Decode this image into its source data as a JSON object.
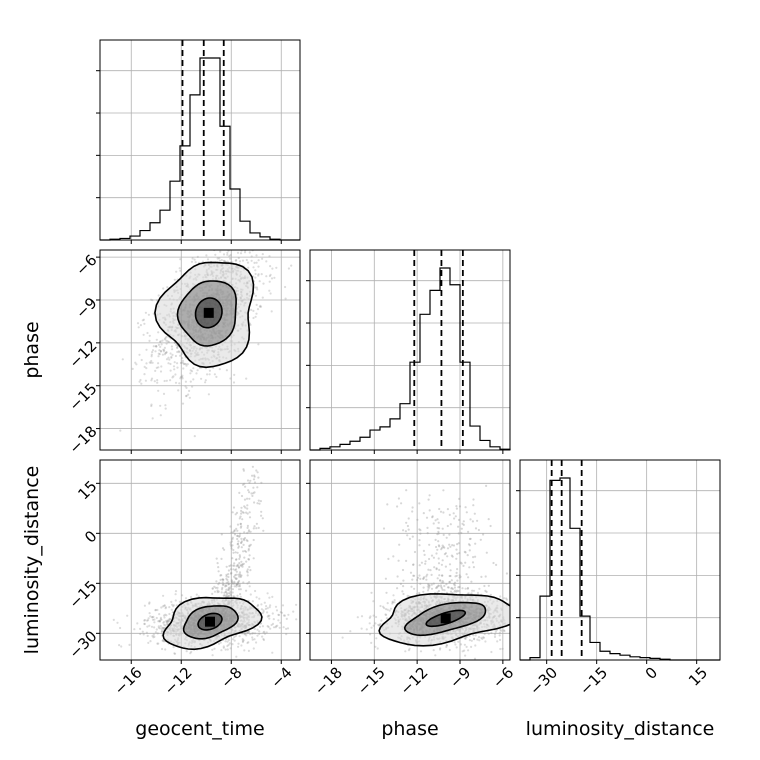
{
  "chart_data": {
    "type": "corner",
    "parameters": [
      "geocent_time",
      "phase",
      "luminosity_distance"
    ],
    "ranges": {
      "geocent_time": [
        -18.5,
        -2.5
      ],
      "phase": [
        -19.5,
        -5.5
      ],
      "luminosity_distance": [
        -38,
        22
      ]
    },
    "ticks": {
      "geocent_time": [
        -16,
        -12,
        -8,
        -4
      ],
      "phase": [
        -18,
        -15,
        -12,
        -9,
        -6
      ],
      "luminosity_distance": [
        -30,
        -15,
        0,
        15
      ]
    },
    "tick_labels": {
      "geocent_time": [
        "−16",
        "−12",
        "−8",
        "−4"
      ],
      "phase": [
        "−18",
        "−15",
        "−12",
        "−9",
        "−6"
      ],
      "luminosity_distance": [
        "−30",
        "−15",
        "0",
        "15"
      ]
    },
    "quantiles": {
      "geocent_time": [
        -11.9,
        -10.2,
        -8.6
      ],
      "phase": [
        -12.2,
        -10.3,
        -8.8
      ],
      "luminosity_distance": [
        -28.5,
        -25.5,
        -19.5
      ]
    },
    "histograms": {
      "geocent_time": {
        "edges": [
          -18.5,
          -17.7,
          -16.9,
          -16.1,
          -15.3,
          -14.5,
          -13.7,
          -12.9,
          -12.1,
          -11.3,
          -10.5,
          -9.7,
          -8.9,
          -8.1,
          -7.3,
          -6.5,
          -5.7,
          -4.9,
          -4.1,
          -3.3,
          -2.5
        ],
        "counts": [
          0,
          1,
          2,
          5,
          12,
          22,
          38,
          75,
          120,
          185,
          232,
          232,
          145,
          65,
          24,
          9,
          4,
          1,
          0,
          0
        ]
      },
      "phase": {
        "edges": [
          -19.5,
          -18.8,
          -18.1,
          -17.4,
          -16.7,
          -16.0,
          -15.3,
          -14.6,
          -13.9,
          -13.2,
          -12.5,
          -11.8,
          -11.1,
          -10.4,
          -9.7,
          -9.0,
          -8.3,
          -7.6,
          -6.9,
          -6.2,
          -5.5
        ],
        "counts": [
          0,
          2,
          4,
          7,
          11,
          16,
          25,
          29,
          39,
          58,
          110,
          170,
          200,
          228,
          207,
          110,
          30,
          12,
          4,
          1
        ]
      },
      "luminosity_distance": {
        "edges": [
          -38,
          -35,
          -32,
          -29,
          -26,
          -23,
          -20,
          -17,
          -14,
          -11,
          -8,
          -5,
          -2,
          1,
          4,
          7,
          10,
          13,
          16,
          19,
          22
        ],
        "counts": [
          0,
          3,
          80,
          225,
          228,
          165,
          55,
          22,
          11,
          8,
          6,
          4,
          3,
          2,
          1,
          0,
          0,
          0,
          0,
          0
        ]
      }
    },
    "contours": {
      "phase_vs_geocent_time": {
        "centre": [
          -9.8,
          -9.9
        ],
        "levels": [
          [
            1.1,
            1.0,
            40
          ],
          [
            2.4,
            2.2,
            38
          ],
          [
            3.8,
            3.6,
            36
          ]
        ]
      },
      "luminosity_distance_vs_geocent_time": {
        "centre": [
          -9.7,
          -26.5
        ],
        "levels": [
          [
            0.9,
            2.5,
            -8
          ],
          [
            2.0,
            5.0,
            -10
          ],
          [
            3.5,
            7.8,
            -12
          ]
        ]
      },
      "luminosity_distance_vs_phase": {
        "centre": [
          -10.0,
          -25.5
        ],
        "levels": [
          [
            0.9,
            2.6,
            -25
          ],
          [
            2.2,
            5.2,
            -22
          ],
          [
            4.4,
            7.8,
            -15
          ]
        ]
      }
    },
    "grid": true
  }
}
